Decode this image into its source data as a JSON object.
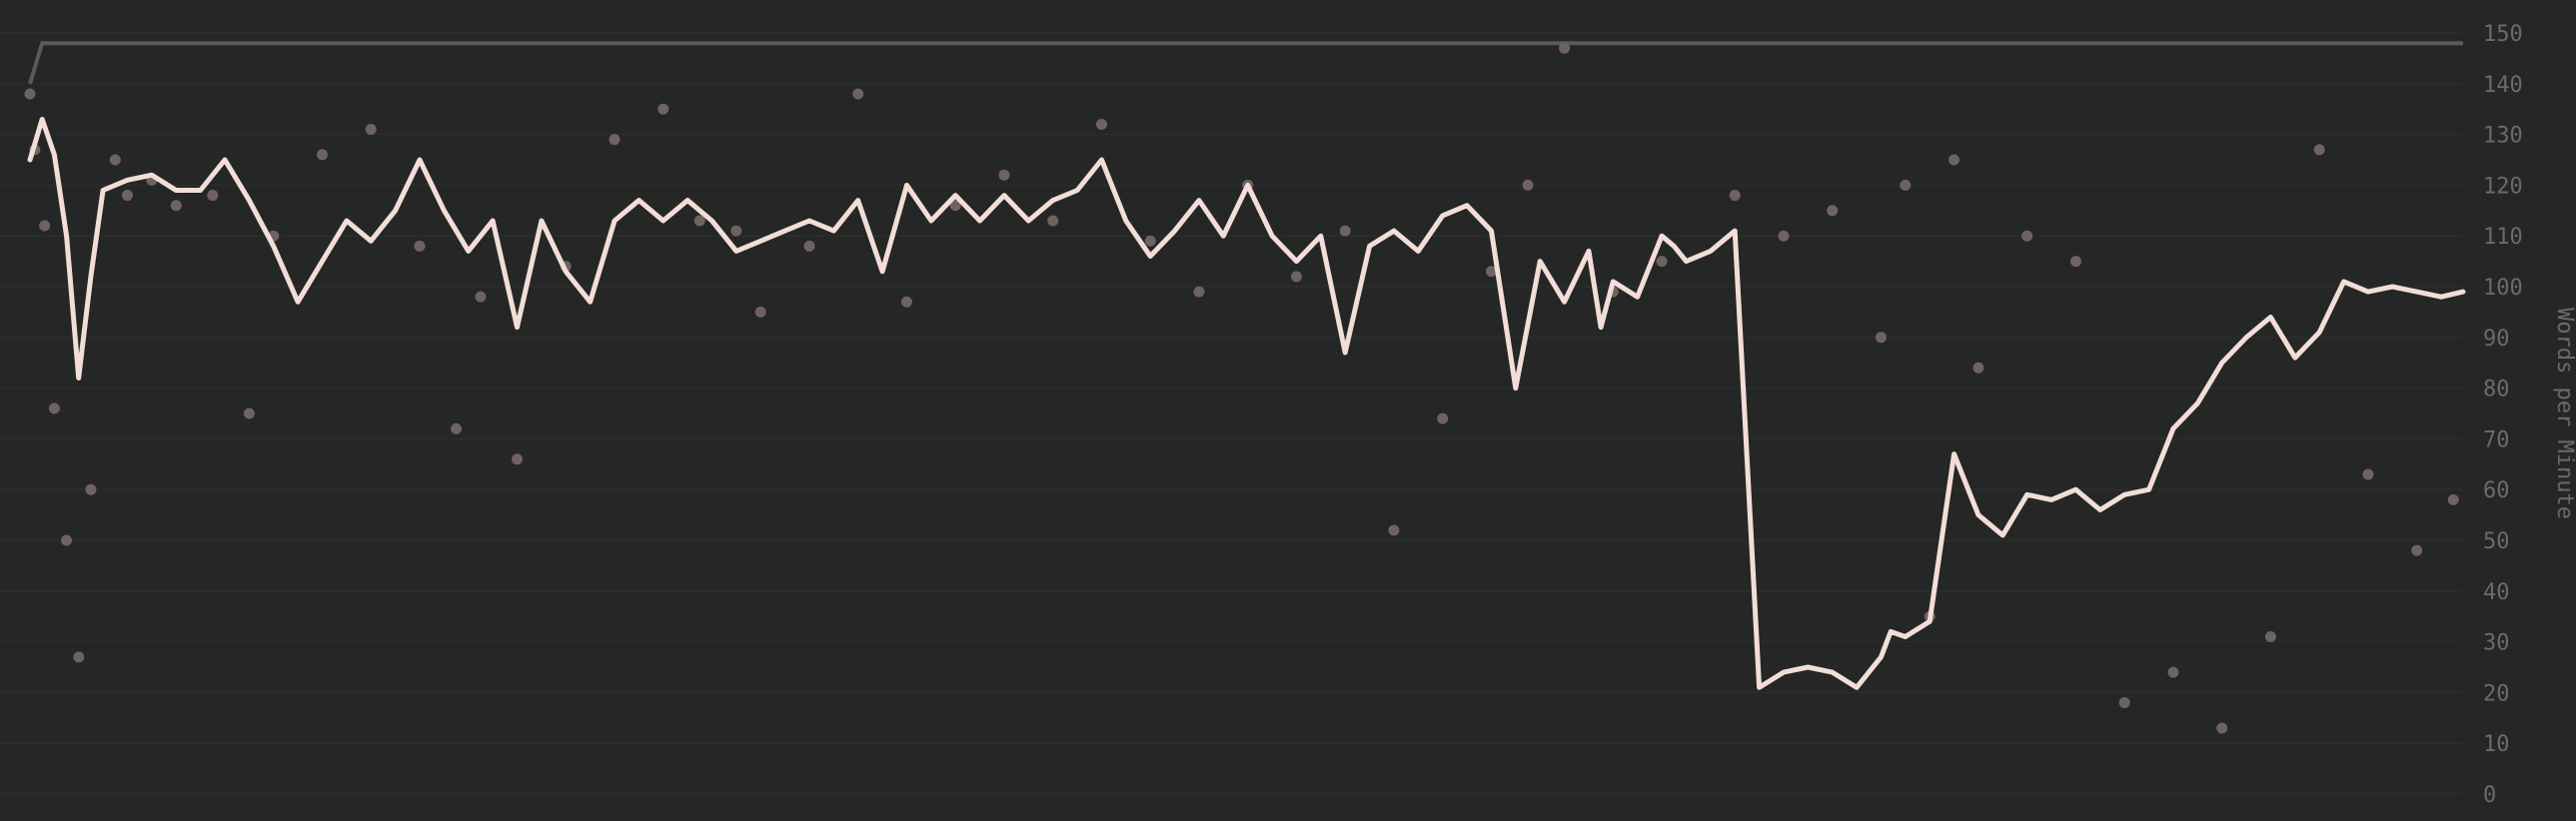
{
  "chart_data": {
    "type": "scatter",
    "title": "",
    "xlabel": "",
    "ylabel": "Words per Minute",
    "ylim": [
      0,
      150
    ],
    "y_ticks": [
      0,
      10,
      20,
      30,
      40,
      50,
      60,
      70,
      80,
      90,
      100,
      110,
      120,
      130,
      140,
      150
    ],
    "y_axis_position": "right",
    "grid": true,
    "legend": "none",
    "x_count": 1000,
    "colors": {
      "background": "#252626",
      "grid": "#2f3030",
      "points": "#6e6361",
      "average_line": "#f2ddd7",
      "personal_best": "#5a5a5a",
      "tick_text": "#6b6b6b"
    },
    "series": [
      {
        "kind": "points",
        "x": [
          0,
          2,
          6,
          10,
          15,
          20,
          25,
          35,
          40,
          50,
          60,
          75,
          90,
          100,
          120,
          140,
          160,
          175,
          185,
          200,
          220,
          240,
          260,
          275,
          290,
          300,
          320,
          340,
          360,
          380,
          400,
          420,
          440,
          460,
          480,
          500,
          520,
          540,
          560,
          580,
          600,
          615,
          630,
          650,
          670,
          700,
          720,
          740,
          760,
          770,
          780,
          790,
          800,
          820,
          840,
          860,
          880,
          900,
          920,
          940,
          960,
          980,
          995
        ],
        "y": [
          138,
          127,
          112,
          76,
          50,
          27,
          60,
          125,
          118,
          121,
          116,
          118,
          75,
          110,
          126,
          131,
          108,
          72,
          98,
          66,
          104,
          129,
          135,
          113,
          111,
          95,
          108,
          138,
          97,
          116,
          122,
          113,
          132,
          109,
          99,
          120,
          102,
          111,
          52,
          74,
          103,
          120,
          147,
          99,
          105,
          118,
          110,
          115,
          90,
          120,
          35,
          125,
          84,
          110,
          105,
          18,
          24,
          13,
          31,
          127,
          63,
          48,
          58
        ]
      },
      {
        "kind": "average",
        "x": [
          0,
          5,
          10,
          15,
          20,
          25,
          30,
          40,
          50,
          60,
          70,
          80,
          90,
          100,
          110,
          120,
          130,
          140,
          150,
          160,
          170,
          180,
          190,
          200,
          210,
          220,
          230,
          240,
          250,
          260,
          270,
          280,
          290,
          300,
          310,
          320,
          330,
          340,
          350,
          360,
          370,
          380,
          390,
          400,
          410,
          420,
          430,
          440,
          450,
          460,
          470,
          480,
          490,
          500,
          510,
          520,
          530,
          540,
          550,
          560,
          570,
          580,
          590,
          600,
          610,
          620,
          630,
          640,
          645,
          650,
          660,
          670,
          675,
          680,
          690,
          700,
          710,
          720,
          730,
          740,
          750,
          760,
          764,
          770,
          780,
          790,
          800,
          810,
          820,
          830,
          840,
          850,
          860,
          870,
          880,
          890,
          900,
          910,
          920,
          930,
          940,
          950,
          960,
          970,
          980,
          990,
          999
        ],
        "y": [
          125,
          133,
          126,
          110,
          82,
          102,
          119,
          121,
          122,
          119,
          119,
          125,
          117,
          108,
          97,
          105,
          113,
          109,
          115,
          125,
          115,
          107,
          113,
          92,
          113,
          103,
          97,
          113,
          117,
          113,
          117,
          113,
          107,
          109,
          111,
          113,
          111,
          117,
          103,
          120,
          113,
          118,
          113,
          118,
          113,
          117,
          119,
          125,
          113,
          106,
          111,
          117,
          110,
          120,
          110,
          105,
          110,
          87,
          108,
          111,
          107,
          114,
          116,
          111,
          80,
          105,
          97,
          107,
          92,
          101,
          98,
          110,
          108,
          105,
          107,
          111,
          21,
          24,
          25,
          24,
          21,
          27,
          32,
          31,
          34,
          67,
          55,
          51,
          59,
          58,
          60,
          56,
          59,
          60,
          72,
          77,
          85,
          90,
          94,
          86,
          91,
          101,
          99,
          100,
          99,
          98,
          99
        ]
      },
      {
        "kind": "personal-best",
        "x": [
          0,
          5,
          10,
          999
        ],
        "y": [
          140,
          148,
          148,
          148
        ]
      }
    ]
  }
}
